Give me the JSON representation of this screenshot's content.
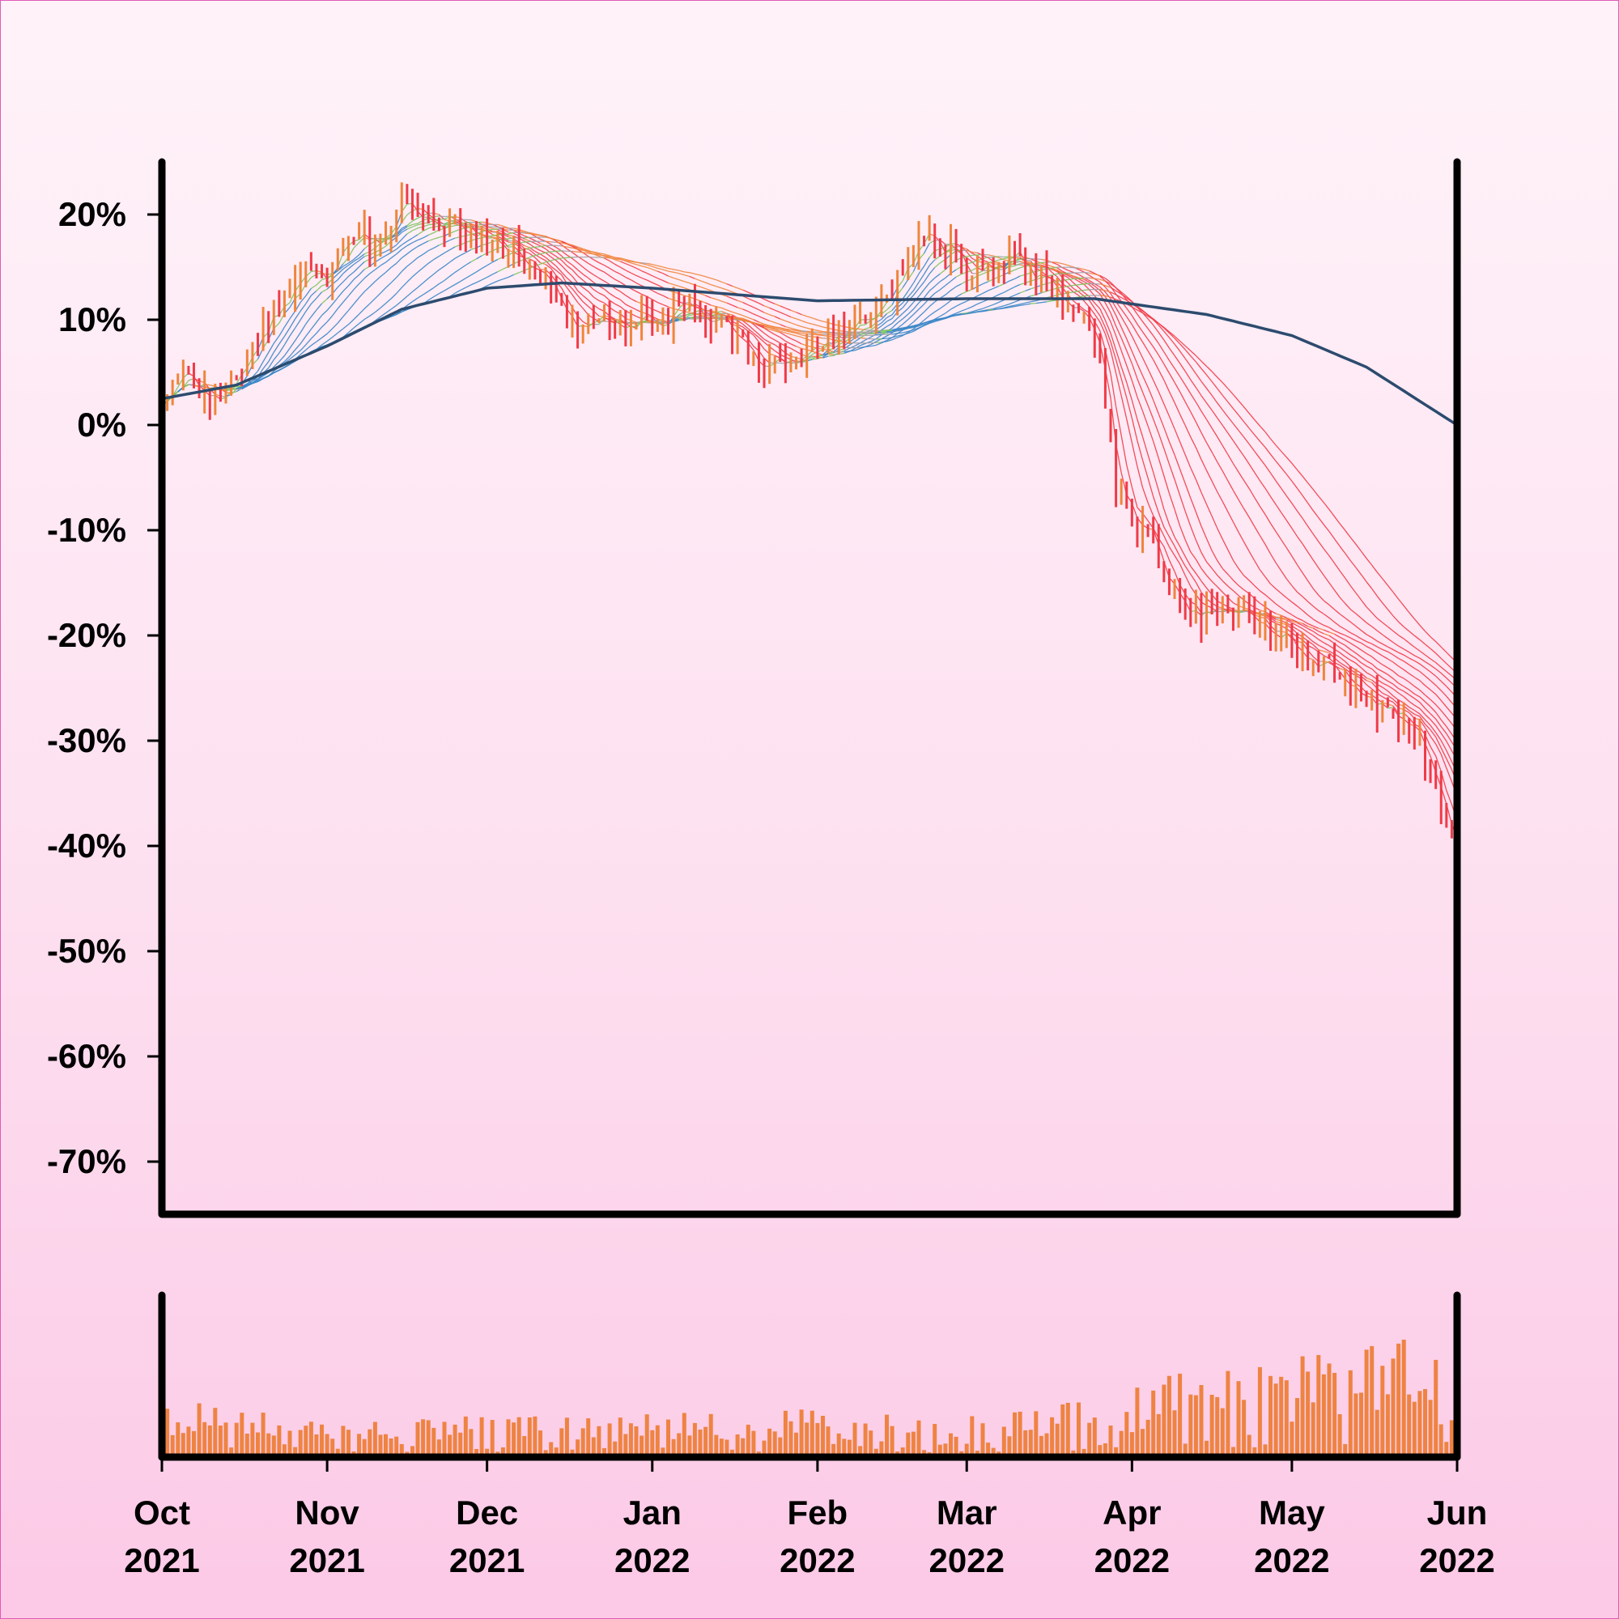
{
  "chart_data": {
    "type": "line",
    "subtype": "ohlc-with-moving-average-ribbon-and-volume",
    "y_unit": "% change",
    "ylim": [
      -75,
      25
    ],
    "y_ticks": [
      20,
      10,
      0,
      -10,
      -20,
      -30,
      -40,
      -50,
      -60,
      -70
    ],
    "y_tick_labels": [
      "20%",
      "10%",
      "0%",
      "-10%",
      "-20%",
      "-30%",
      "-40%",
      "-50%",
      "-60%",
      "-70%"
    ],
    "x_range": [
      "2021-10-01",
      "2022-06-01"
    ],
    "x_ticks": [
      {
        "date": "2021-10-01",
        "month": "Oct",
        "year": "2021"
      },
      {
        "date": "2021-11-01",
        "month": "Nov",
        "year": "2021"
      },
      {
        "date": "2021-12-01",
        "month": "Dec",
        "year": "2021"
      },
      {
        "date": "2022-01-01",
        "month": "Jan",
        "year": "2022"
      },
      {
        "date": "2022-02-01",
        "month": "Feb",
        "year": "2022"
      },
      {
        "date": "2022-03-01",
        "month": "Mar",
        "year": "2022"
      },
      {
        "date": "2022-04-01",
        "month": "Apr",
        "year": "2022"
      },
      {
        "date": "2022-05-01",
        "month": "May",
        "year": "2022"
      },
      {
        "date": "2022-06-01",
        "month": "Jun",
        "year": "2022"
      }
    ],
    "grid": false,
    "legend": "none",
    "price_anchors": [
      [
        "2021-10-01",
        3
      ],
      [
        "2021-10-05",
        5
      ],
      [
        "2021-10-10",
        3
      ],
      [
        "2021-10-15",
        4
      ],
      [
        "2021-10-22",
        11
      ],
      [
        "2021-10-27",
        14
      ],
      [
        "2021-11-01",
        14
      ],
      [
        "2021-11-06",
        18
      ],
      [
        "2021-11-11",
        17
      ],
      [
        "2021-11-15",
        21
      ],
      [
        "2021-11-18",
        19
      ],
      [
        "2021-11-25",
        19
      ],
      [
        "2021-12-01",
        18
      ],
      [
        "2021-12-08",
        16
      ],
      [
        "2021-12-13",
        13
      ],
      [
        "2021-12-18",
        9
      ],
      [
        "2021-12-22",
        11
      ],
      [
        "2021-12-27",
        9
      ],
      [
        "2022-01-01",
        10
      ],
      [
        "2022-01-07",
        11
      ],
      [
        "2022-01-12",
        10
      ],
      [
        "2022-01-17",
        8
      ],
      [
        "2022-01-22",
        5
      ],
      [
        "2022-01-25",
        6
      ],
      [
        "2022-02-01",
        8
      ],
      [
        "2022-02-07",
        9
      ],
      [
        "2022-02-12",
        11
      ],
      [
        "2022-02-17",
        14
      ],
      [
        "2022-02-21",
        18
      ],
      [
        "2022-02-25",
        17
      ],
      [
        "2022-03-01",
        15
      ],
      [
        "2022-03-06",
        15
      ],
      [
        "2022-03-10",
        16
      ],
      [
        "2022-03-15",
        14
      ],
      [
        "2022-03-20",
        11
      ],
      [
        "2022-03-26",
        8
      ],
      [
        "2022-03-29",
        -7
      ],
      [
        "2022-04-03",
        -10
      ],
      [
        "2022-04-08",
        -15
      ],
      [
        "2022-04-13",
        -18
      ],
      [
        "2022-04-20",
        -18
      ],
      [
        "2022-04-28",
        -20
      ],
      [
        "2022-05-05",
        -22
      ],
      [
        "2022-05-12",
        -25
      ],
      [
        "2022-05-19",
        -27
      ],
      [
        "2022-05-25",
        -30
      ],
      [
        "2022-05-29",
        -36
      ],
      [
        "2022-06-01",
        -41
      ]
    ],
    "long_moving_average": [
      [
        "2021-10-01",
        2.5
      ],
      [
        "2021-10-15",
        3.8
      ],
      [
        "2021-11-01",
        7.5
      ],
      [
        "2021-11-15",
        11
      ],
      [
        "2021-12-01",
        13
      ],
      [
        "2021-12-15",
        13.5
      ],
      [
        "2022-01-01",
        13
      ],
      [
        "2022-02-01",
        11.8
      ],
      [
        "2022-03-01",
        12
      ],
      [
        "2022-03-25",
        12
      ],
      [
        "2022-04-15",
        10.5
      ],
      [
        "2022-05-01",
        8.5
      ],
      [
        "2022-05-15",
        5.5
      ],
      [
        "2022-06-01",
        0
      ]
    ],
    "ribbon_periods": [
      3,
      5,
      8,
      10,
      12,
      15,
      18,
      21,
      25,
      30,
      35,
      40,
      45,
      50,
      55,
      60
    ],
    "volume": {
      "unit": "relative",
      "anchors": [
        [
          "2021-10-01",
          0.25
        ],
        [
          "2021-11-01",
          0.17
        ],
        [
          "2021-12-01",
          0.17
        ],
        [
          "2022-01-01",
          0.18
        ],
        [
          "2022-02-01",
          0.2
        ],
        [
          "2022-03-01",
          0.17
        ],
        [
          "2022-04-01",
          0.32
        ],
        [
          "2022-05-01",
          0.42
        ],
        [
          "2022-06-01",
          0.55
        ]
      ]
    },
    "colors": {
      "candle_up": "#f0843c",
      "candle_down": "#ef3b47",
      "long_ma": "#2c4b6e",
      "ribbon_bull_strong": "#3a86c8",
      "ribbon_bull": "#7cc35f",
      "ribbon_neutral": "#a0a0a8",
      "ribbon_bear": "#f0843c",
      "ribbon_bear_strong": "#ef3b47",
      "volume_bar": "#ee8342",
      "axis": "#000000"
    }
  }
}
